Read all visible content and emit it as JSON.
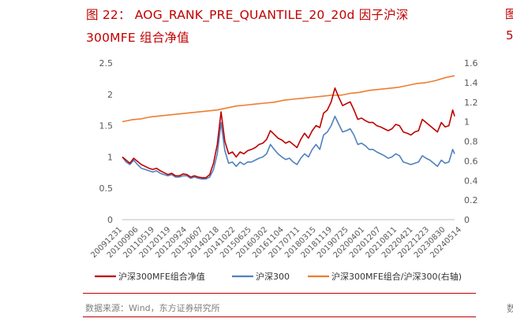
{
  "figure": {
    "title_line1": "图  22：  AOG_RANK_PRE_QUANTILE_20_20d  因子沪深",
    "title_line2": "300MFE 组合净值",
    "source": "数据来源：Wind，东方证券研究所",
    "edge_fragment_top": "图",
    "edge_fragment_mid": "5",
    "edge_fragment_bottom": "数"
  },
  "colors": {
    "title": "#c00000",
    "portfolio": "#c00000",
    "index": "#4f81bd",
    "ratio": "#ed7d31",
    "axis_text": "#595959",
    "axis_line": "#bfbfbf"
  },
  "chart_data": {
    "type": "line",
    "ylim": [
      0,
      2.5
    ],
    "y_ticks": [
      "0",
      "0.5",
      "1",
      "1.5",
      "2",
      "2.5"
    ],
    "y2lim": [
      0,
      1.6
    ],
    "y2_ticks": [
      "0",
      "0.2",
      "0.4",
      "0.6",
      "0.8",
      "1",
      "1.2",
      "1.4",
      "1.6"
    ],
    "x_tick_labels": [
      "20091231",
      "20100906",
      "20110519",
      "20120119",
      "20120924",
      "20130607",
      "20140218",
      "20141022",
      "20150625",
      "20160302",
      "20161104",
      "20170711",
      "20180315",
      "20181119",
      "20190725",
      "20200401",
      "20201207",
      "20210811",
      "20220421",
      "20221223",
      "20230830",
      "20240514"
    ],
    "x_domain": [
      0,
      175
    ],
    "series": [
      {
        "name": "沪深300MFE组合净值",
        "axis": "left",
        "color": "#c00000",
        "x": [
          0,
          2,
          4,
          6,
          8,
          10,
          12,
          14,
          16,
          18,
          20,
          22,
          24,
          26,
          28,
          30,
          32,
          34,
          36,
          38,
          40,
          42,
          44,
          46,
          48,
          50,
          52,
          54,
          56,
          58,
          60,
          62,
          64,
          66,
          68,
          70,
          72,
          74,
          76,
          78,
          80,
          82,
          84,
          86,
          88,
          90,
          92,
          94,
          96,
          98,
          100,
          102,
          104,
          106,
          108,
          110,
          112,
          114,
          116,
          118,
          120,
          122,
          124,
          126,
          128,
          130,
          132,
          134,
          136,
          138,
          140,
          142,
          144,
          146,
          148,
          150,
          152,
          154,
          156,
          158,
          160,
          162,
          164,
          166,
          168,
          170,
          172,
          174,
          175
        ],
        "values": [
          1.0,
          0.95,
          0.9,
          0.98,
          0.93,
          0.88,
          0.85,
          0.82,
          0.8,
          0.82,
          0.78,
          0.75,
          0.72,
          0.74,
          0.7,
          0.7,
          0.73,
          0.72,
          0.68,
          0.7,
          0.68,
          0.67,
          0.67,
          0.72,
          0.9,
          1.2,
          1.72,
          1.25,
          1.05,
          1.08,
          1.0,
          1.08,
          1.05,
          1.1,
          1.12,
          1.15,
          1.2,
          1.22,
          1.28,
          1.42,
          1.36,
          1.3,
          1.27,
          1.22,
          1.25,
          1.2,
          1.15,
          1.28,
          1.38,
          1.3,
          1.42,
          1.5,
          1.47,
          1.7,
          1.75,
          1.88,
          2.1,
          1.95,
          1.82,
          1.85,
          1.88,
          1.75,
          1.6,
          1.62,
          1.58,
          1.55,
          1.55,
          1.5,
          1.48,
          1.45,
          1.42,
          1.45,
          1.52,
          1.5,
          1.4,
          1.38,
          1.35,
          1.4,
          1.42,
          1.6,
          1.55,
          1.5,
          1.45,
          1.4,
          1.55,
          1.48,
          1.5,
          1.75,
          1.65
        ]
      },
      {
        "name": "沪深300",
        "axis": "left",
        "color": "#4f81bd",
        "x": [
          0,
          2,
          4,
          6,
          8,
          10,
          12,
          14,
          16,
          18,
          20,
          22,
          24,
          26,
          28,
          30,
          32,
          34,
          36,
          38,
          40,
          42,
          44,
          46,
          48,
          50,
          52,
          54,
          56,
          58,
          60,
          62,
          64,
          66,
          68,
          70,
          72,
          74,
          76,
          78,
          80,
          82,
          84,
          86,
          88,
          90,
          92,
          94,
          96,
          98,
          100,
          102,
          104,
          106,
          108,
          110,
          112,
          114,
          116,
          118,
          120,
          122,
          124,
          126,
          128,
          130,
          132,
          134,
          136,
          138,
          140,
          142,
          144,
          146,
          148,
          150,
          152,
          154,
          156,
          158,
          160,
          162,
          164,
          166,
          168,
          170,
          172,
          174,
          175
        ],
        "values": [
          1.0,
          0.92,
          0.88,
          0.95,
          0.88,
          0.82,
          0.8,
          0.78,
          0.76,
          0.78,
          0.74,
          0.72,
          0.7,
          0.72,
          0.68,
          0.68,
          0.7,
          0.7,
          0.66,
          0.68,
          0.66,
          0.65,
          0.65,
          0.68,
          0.8,
          1.05,
          1.55,
          1.1,
          0.9,
          0.92,
          0.85,
          0.92,
          0.88,
          0.92,
          0.92,
          0.95,
          0.98,
          1.0,
          1.05,
          1.2,
          1.12,
          1.05,
          1.0,
          0.96,
          0.98,
          0.92,
          0.88,
          0.98,
          1.05,
          1.0,
          1.12,
          1.2,
          1.12,
          1.35,
          1.4,
          1.5,
          1.65,
          1.52,
          1.4,
          1.42,
          1.45,
          1.35,
          1.2,
          1.22,
          1.18,
          1.12,
          1.12,
          1.08,
          1.05,
          1.02,
          0.98,
          1.0,
          1.05,
          1.02,
          0.92,
          0.9,
          0.88,
          0.9,
          0.92,
          1.02,
          0.98,
          0.95,
          0.9,
          0.85,
          0.95,
          0.9,
          0.92,
          1.12,
          1.05
        ]
      },
      {
        "name": "沪深300MFE组合/沪深300(右轴)",
        "axis": "right",
        "color": "#ed7d31",
        "x": [
          0,
          5,
          10,
          15,
          20,
          25,
          30,
          35,
          40,
          45,
          50,
          55,
          60,
          65,
          70,
          75,
          80,
          85,
          90,
          95,
          100,
          105,
          110,
          115,
          120,
          125,
          130,
          135,
          140,
          145,
          150,
          155,
          160,
          165,
          170,
          175
        ],
        "values": [
          1.0,
          1.02,
          1.03,
          1.05,
          1.06,
          1.07,
          1.08,
          1.09,
          1.1,
          1.11,
          1.12,
          1.14,
          1.16,
          1.17,
          1.18,
          1.19,
          1.2,
          1.22,
          1.23,
          1.24,
          1.25,
          1.26,
          1.27,
          1.27,
          1.29,
          1.3,
          1.32,
          1.33,
          1.34,
          1.35,
          1.37,
          1.39,
          1.4,
          1.42,
          1.45,
          1.47
        ]
      }
    ],
    "legend_position": "bottom"
  }
}
